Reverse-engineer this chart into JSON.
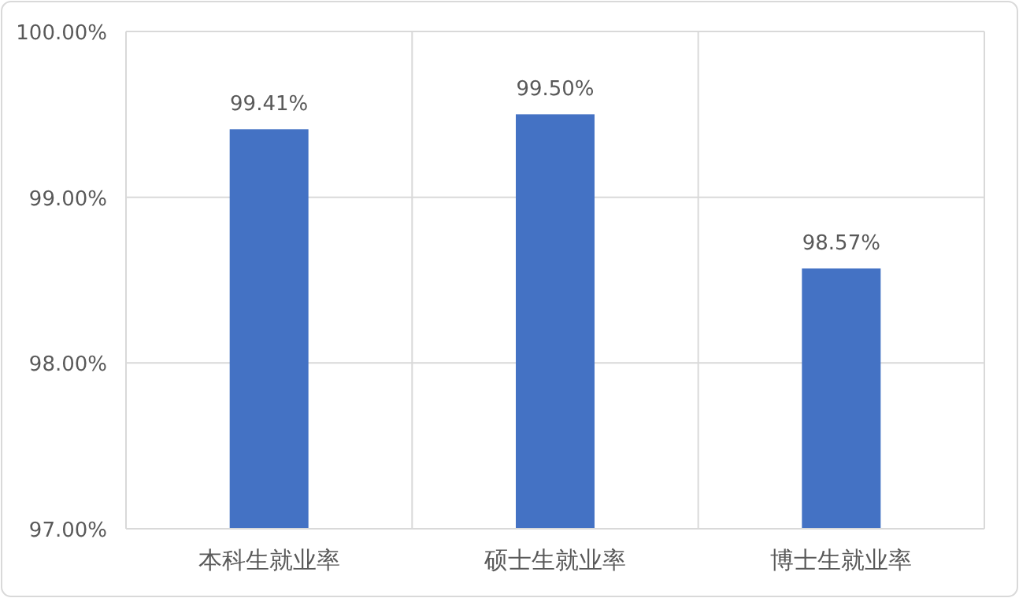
{
  "chart_data": {
    "type": "bar",
    "categories": [
      "本科生就业率",
      "硕士生就业率",
      "博士生就业率"
    ],
    "values": [
      99.41,
      99.5,
      98.57
    ],
    "value_labels": [
      "99.41%",
      "99.50%",
      "98.57%"
    ],
    "color": "#4472c4",
    "ylim": [
      97,
      100
    ],
    "yticks": [
      {
        "value": 97,
        "label": "97.00%"
      },
      {
        "value": 98,
        "label": "98.00%"
      },
      {
        "value": 99,
        "label": "99.00%"
      },
      {
        "value": 100,
        "label": "100.00%"
      }
    ],
    "grid": true
  }
}
